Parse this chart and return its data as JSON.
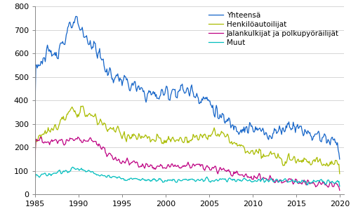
{
  "title": "",
  "xlim": [
    1985.0,
    2020.5
  ],
  "ylim": [
    0,
    800
  ],
  "yticks": [
    0,
    100,
    200,
    300,
    400,
    500,
    600,
    700,
    800
  ],
  "xticks": [
    1985,
    1990,
    1995,
    2000,
    2005,
    2010,
    2015,
    2020
  ],
  "line_colors": {
    "yhteensa": "#1464c8",
    "henkilo": "#aabc00",
    "jalankulkija": "#be0082",
    "muut": "#00bebe"
  },
  "legend_labels": [
    "Yhteensä",
    "Henkilöautoilijat",
    "Jalankulkijat ja polkupyöräilijät",
    "Muut"
  ],
  "line_width": 0.9,
  "background_color": "#ffffff",
  "grid_color": "#d0d0d0",
  "tick_fontsize": 8,
  "legend_fontsize": 7.5
}
